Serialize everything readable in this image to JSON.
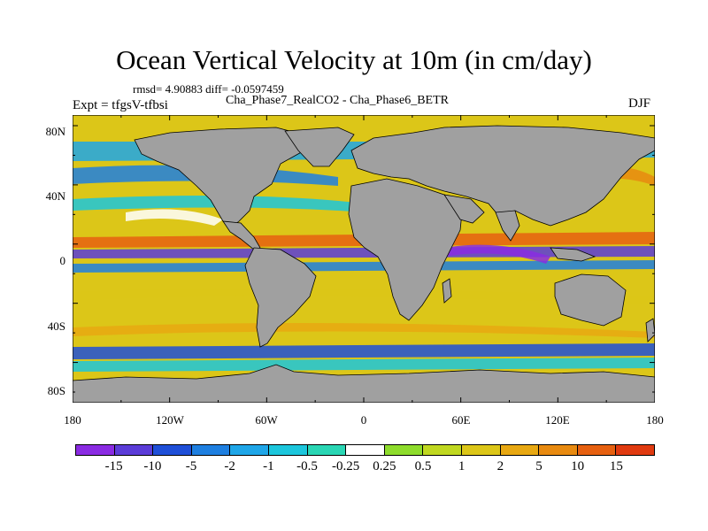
{
  "title": "Ocean Vertical Velocity at 10m (in cm/day)",
  "stats": "rmsd= 4.90883 diff= -0.0597459",
  "experiment": "Expt = tfgsV-tfbsi",
  "case": "Cha_Phase7_RealCO2 - Cha_Phase6_BETR",
  "season": "DJF",
  "lat_labels": [
    "80N",
    "40N",
    "0",
    "40S",
    "80S"
  ],
  "lon_labels": [
    "180",
    "120W",
    "60W",
    "0",
    "60E",
    "120E",
    "180"
  ],
  "colorbar": {
    "colors": [
      "#8a2be2",
      "#5b3cd8",
      "#1f4fd8",
      "#1e7fe0",
      "#1fa6e8",
      "#1cc6dc",
      "#2ad6b4",
      "#ffffff",
      "#8edc2c",
      "#c0d820",
      "#dcc618",
      "#e8a812",
      "#e88a10",
      "#e66010",
      "#e03a10"
    ],
    "labels": [
      "-15",
      "-10",
      "-5",
      "-2",
      "-1",
      "-0.5",
      "-0.25",
      "0.25",
      "0.5",
      "1",
      "2",
      "5",
      "10",
      "15"
    ]
  },
  "land_color": "#a0a0a0"
}
